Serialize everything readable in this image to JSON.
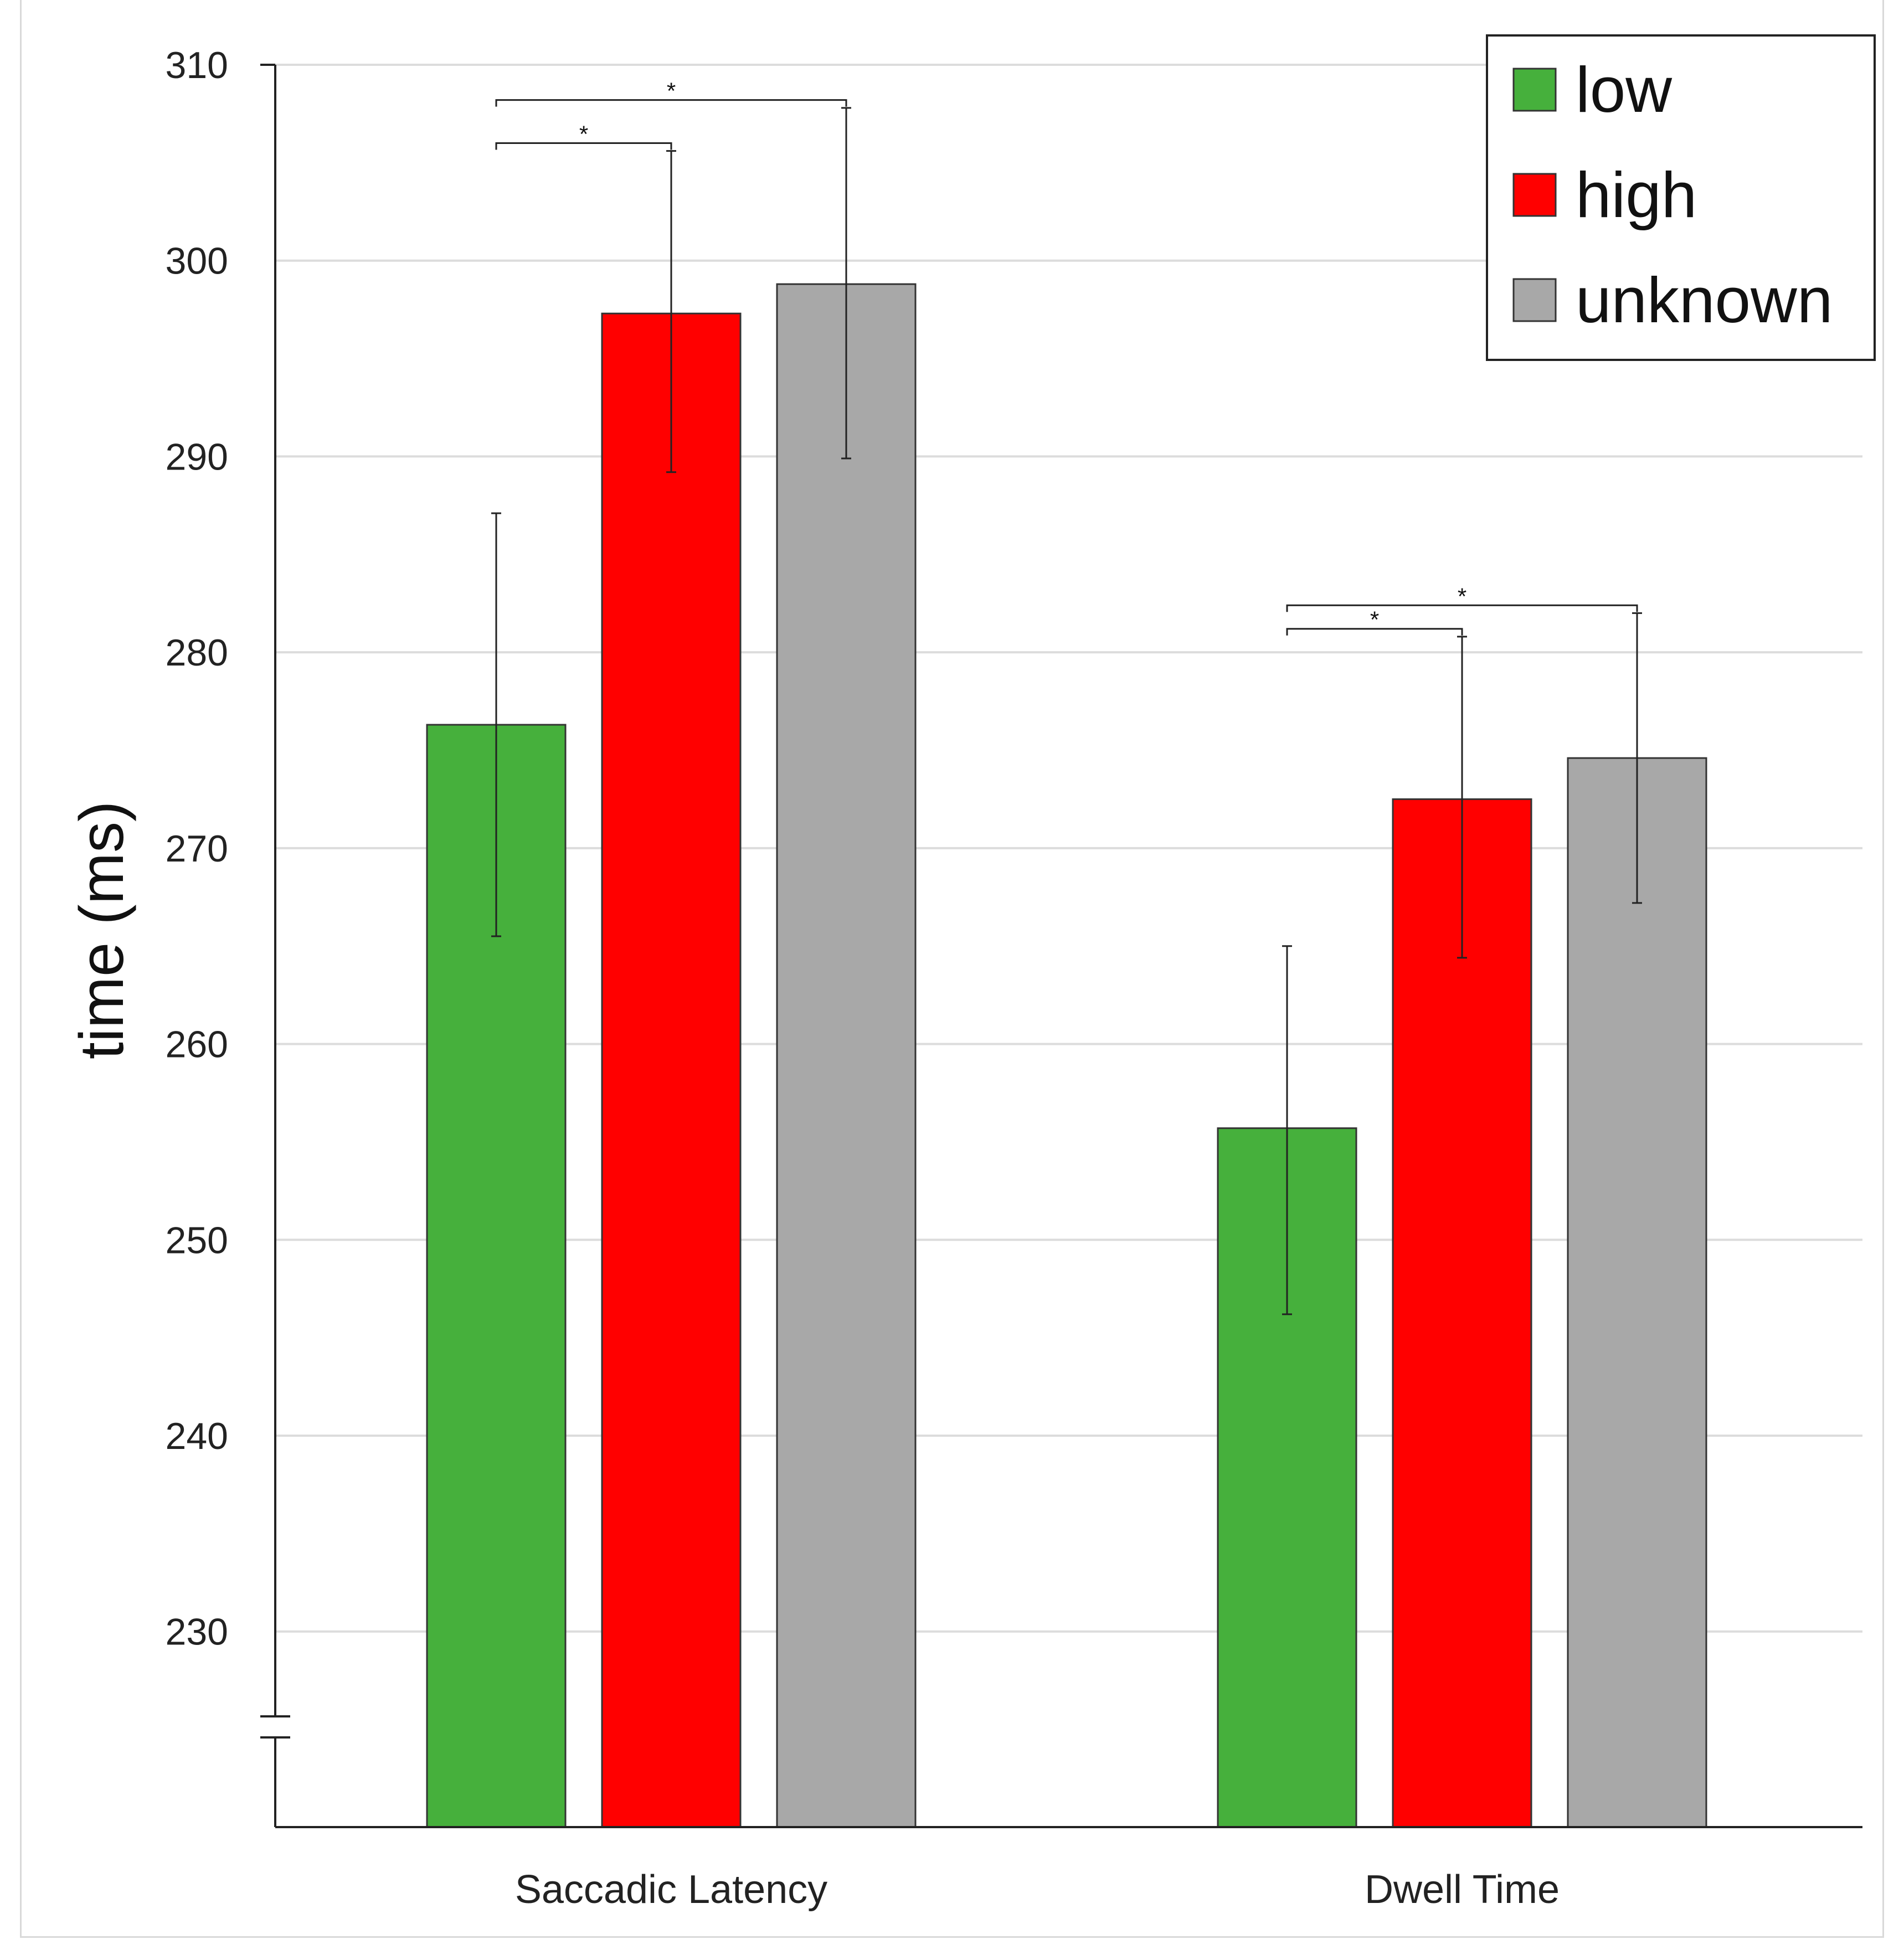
{
  "chart_data": {
    "type": "bar",
    "title": "",
    "xlabel": "",
    "ylabel": "time (ms)",
    "ylim": [
      220,
      310
    ],
    "axis_break": true,
    "yticks": [
      230,
      240,
      250,
      260,
      270,
      280,
      290,
      300,
      310
    ],
    "ytick_labels": [
      "230",
      "240",
      "250",
      "260",
      "270",
      "280",
      "290",
      "300",
      "310"
    ],
    "grid": true,
    "legend_position": "top-right",
    "categories": [
      "Saccadic Latency",
      "Dwell Time"
    ],
    "series": [
      {
        "name": "low",
        "color": "#46b03c",
        "values": [
          276.3,
          255.7
        ],
        "error_low": [
          265.5,
          246.2
        ],
        "error_high": [
          287.1,
          265.0
        ]
      },
      {
        "name": "high",
        "color": "#ff0000",
        "values": [
          297.3,
          272.5
        ],
        "error_low": [
          289.2,
          264.4
        ],
        "error_high": [
          305.6,
          280.8
        ]
      },
      {
        "name": "unknown",
        "color": "#a8a8a8",
        "values": [
          298.8,
          274.6
        ],
        "error_low": [
          289.9,
          267.2
        ],
        "error_high": [
          307.8,
          282.0
        ]
      }
    ],
    "significance": [
      {
        "category": "Saccadic Latency",
        "from": "low",
        "to": "high",
        "y": 306.0,
        "label": "*"
      },
      {
        "category": "Saccadic Latency",
        "from": "low",
        "to": "unknown",
        "y": 308.2,
        "label": "*"
      },
      {
        "category": "Dwell Time",
        "from": "low",
        "to": "high",
        "y": 281.2,
        "label": "*"
      },
      {
        "category": "Dwell Time",
        "from": "low",
        "to": "unknown",
        "y": 282.4,
        "label": "*"
      }
    ]
  }
}
